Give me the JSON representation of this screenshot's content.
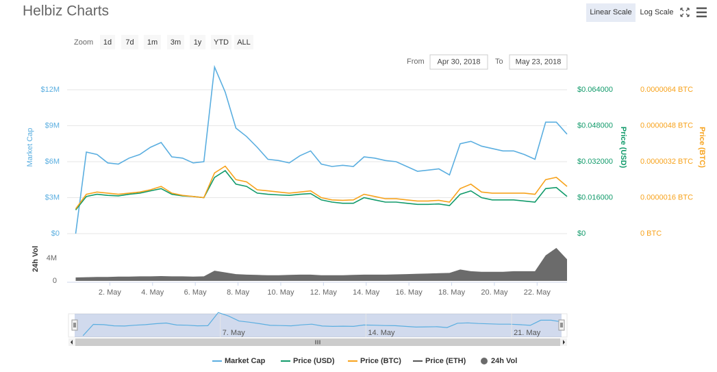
{
  "header": {
    "title": "Helbiz Charts",
    "scale_buttons": [
      "Linear Scale",
      "Log Scale"
    ]
  },
  "zoom": {
    "label": "Zoom",
    "buttons": [
      "1d",
      "7d",
      "1m",
      "3m",
      "1y",
      "YTD",
      "ALL"
    ]
  },
  "range": {
    "from_label": "From",
    "from": "Apr 30, 2018",
    "to_label": "To",
    "to": "May 23, 2018"
  },
  "chart_data": {
    "type": "line",
    "x": [
      0.4,
      0.9,
      1.4,
      1.9,
      2.4,
      2.9,
      3.4,
      3.9,
      4.4,
      4.9,
      5.4,
      5.9,
      6.4,
      6.9,
      7.4,
      7.9,
      8.4,
      8.9,
      9.4,
      9.9,
      10.4,
      10.9,
      11.4,
      11.9,
      12.4,
      12.9,
      13.4,
      13.9,
      14.4,
      14.9,
      15.4,
      15.9,
      16.4,
      16.9,
      17.4,
      17.9,
      18.4,
      18.9,
      19.4,
      19.9,
      20.4,
      20.9,
      21.4,
      21.9,
      22.4,
      22.9,
      23.4
    ],
    "xlim": [
      0,
      23.4
    ],
    "xticks": [
      {
        "value": 2,
        "label": "2. May"
      },
      {
        "value": 4,
        "label": "4. May"
      },
      {
        "value": 6,
        "label": "6. May"
      },
      {
        "value": 8,
        "label": "8. May"
      },
      {
        "value": 10,
        "label": "10. May"
      },
      {
        "value": 12,
        "label": "12. May"
      },
      {
        "value": 14,
        "label": "14. May"
      },
      {
        "value": 16,
        "label": "16. May"
      },
      {
        "value": 18,
        "label": "18. May"
      },
      {
        "value": 20,
        "label": "20. May"
      },
      {
        "value": 22,
        "label": "22. May"
      }
    ],
    "y_label": "Market Cap",
    "ylim": [
      0,
      14800000
    ],
    "yticks": [
      {
        "value": 0,
        "label": "$0"
      },
      {
        "value": 3000000,
        "label": "$3M"
      },
      {
        "value": 6000000,
        "label": "$6M"
      },
      {
        "value": 9000000,
        "label": "$9M"
      },
      {
        "value": 12000000,
        "label": "$12M"
      }
    ],
    "y2_label": "Price (USD)",
    "y2lim": [
      0,
      0.0789
    ],
    "y2ticks": [
      {
        "value": 0,
        "label": "$0"
      },
      {
        "value": 0.016,
        "label": "$0.016000"
      },
      {
        "value": 0.032,
        "label": "$0.032000"
      },
      {
        "value": 0.048,
        "label": "$0.048000"
      },
      {
        "value": 0.064,
        "label": "$0.064000"
      }
    ],
    "y3_label": "Price (BTC)",
    "y3lim": [
      0,
      7.89e-06
    ],
    "y3ticks": [
      {
        "value": 0,
        "label": "0 BTC"
      },
      {
        "value": 1.6e-06,
        "label": "0.0000016 BTC"
      },
      {
        "value": 3.2e-06,
        "label": "0.0000032 BTC"
      },
      {
        "value": 4.8e-06,
        "label": "0.0000048 BTC"
      },
      {
        "value": 6.4e-06,
        "label": "0.0000064 BTC"
      }
    ],
    "grid": true,
    "series": [
      {
        "name": "Market Cap",
        "color": "#5aaee0",
        "axis": "y",
        "values": [
          0,
          6800000,
          6600000,
          5900000,
          5800000,
          6300000,
          6600000,
          7200000,
          7600000,
          6400000,
          6300000,
          5900000,
          6000000,
          13900000,
          11800000,
          8800000,
          8100000,
          7200000,
          6200000,
          6100000,
          5900000,
          6500000,
          6900000,
          5800000,
          5600000,
          5700000,
          5600000,
          6400000,
          6300000,
          6100000,
          6000000,
          5600000,
          5200000,
          5300000,
          5400000,
          4900000,
          7500000,
          7700000,
          7300000,
          7100000,
          6900000,
          6900000,
          6600000,
          6200000,
          9300000,
          9300000,
          8300000
        ]
      },
      {
        "name": "Price (USD)",
        "color": "#109a6a",
        "axis": "y2",
        "values": [
          0.0105,
          0.0165,
          0.0175,
          0.017,
          0.0168,
          0.0175,
          0.018,
          0.019,
          0.02,
          0.0175,
          0.0168,
          0.0165,
          0.016,
          0.025,
          0.028,
          0.022,
          0.021,
          0.018,
          0.0175,
          0.0172,
          0.017,
          0.0175,
          0.0178,
          0.015,
          0.014,
          0.0135,
          0.0135,
          0.016,
          0.015,
          0.014,
          0.014,
          0.0135,
          0.013,
          0.013,
          0.0132,
          0.0125,
          0.0175,
          0.019,
          0.016,
          0.015,
          0.015,
          0.015,
          0.0145,
          0.014,
          0.02,
          0.0205,
          0.0165
        ]
      },
      {
        "name": "Price (BTC)",
        "color": "#f7a21b",
        "axis": "y3",
        "values": [
          1.1e-06,
          1.75e-06,
          1.85e-06,
          1.8e-06,
          1.75e-06,
          1.8e-06,
          1.85e-06,
          1.95e-06,
          2.1e-06,
          1.8e-06,
          1.7e-06,
          1.65e-06,
          1.6e-06,
          2.7e-06,
          3e-06,
          2.4e-06,
          2.3e-06,
          1.95e-06,
          1.9e-06,
          1.85e-06,
          1.8e-06,
          1.85e-06,
          1.9e-06,
          1.6e-06,
          1.5e-06,
          1.48e-06,
          1.5e-06,
          1.75e-06,
          1.65e-06,
          1.55e-06,
          1.55e-06,
          1.5e-06,
          1.45e-06,
          1.45e-06,
          1.48e-06,
          1.4e-06,
          2e-06,
          2.2e-06,
          1.85e-06,
          1.8e-06,
          1.8e-06,
          1.8e-06,
          1.8e-06,
          1.75e-06,
          2.4e-06,
          2.5e-06,
          2.1e-06
        ]
      },
      {
        "name": "Price (ETH)",
        "color": "#555555",
        "visible": false
      }
    ],
    "volume": {
      "name": "24h Vol",
      "label": "24h Vol",
      "color": "#6b6b6b",
      "ylim": [
        0,
        7000000
      ],
      "yticks": [
        0,
        {
          "value": 4000000,
          "label": "4M"
        }
      ],
      "values": [
        600000,
        650000,
        700000,
        700000,
        750000,
        750000,
        800000,
        800000,
        850000,
        800000,
        800000,
        750000,
        800000,
        1800000,
        1500000,
        1200000,
        1100000,
        1050000,
        1000000,
        1000000,
        1050000,
        1100000,
        1100000,
        1000000,
        1000000,
        1000000,
        1050000,
        1100000,
        1100000,
        1100000,
        1150000,
        1200000,
        1250000,
        1300000,
        1350000,
        1400000,
        2000000,
        1700000,
        1600000,
        1600000,
        1600000,
        1700000,
        1700000,
        1700000,
        4500000,
        5800000,
        3800000
      ]
    },
    "navigator": {
      "xticks": [
        {
          "value": 7,
          "label": "7. May"
        },
        {
          "value": 14,
          "label": "14. May"
        },
        {
          "value": 21,
          "label": "21. May"
        }
      ]
    }
  }
}
